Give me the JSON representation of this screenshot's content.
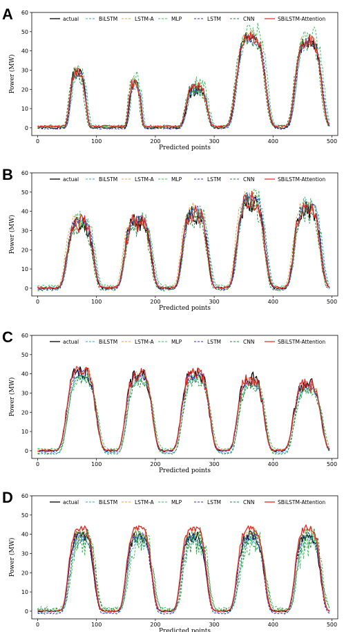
{
  "figure": {
    "panels": [
      "A",
      "B",
      "C",
      "D"
    ]
  },
  "chart_data": [
    {
      "type": "line",
      "panel": "A",
      "xlabel": "Predicted points",
      "ylabel": "Power (MW)",
      "xlim": [
        -10,
        510
      ],
      "ylim": [
        -4,
        60
      ],
      "xticks": [
        0,
        100,
        200,
        300,
        400,
        500
      ],
      "yticks": [
        0,
        10,
        20,
        30,
        40,
        50,
        60
      ],
      "legend_position": "top",
      "peaks": [
        {
          "c": 68,
          "w": 12,
          "h": 28
        },
        {
          "c": 165,
          "w": 9,
          "h": 23
        },
        {
          "c": 270,
          "w": 16,
          "h": 20
        },
        {
          "c": 362,
          "w": 22,
          "h": 47
        },
        {
          "c": 460,
          "w": 20,
          "h": 45
        }
      ],
      "series": [
        {
          "name": "actual",
          "color": "#000000",
          "dash": "solid",
          "width": 1.3,
          "scale": 1.0,
          "shift": 0,
          "noise": 1.2,
          "base": 0,
          "seed": 1
        },
        {
          "name": "BiLSTM",
          "color": "#3aa0d8",
          "dash": "dashed",
          "width": 1.0,
          "scale": 0.95,
          "shift": 2,
          "noise": 0.8,
          "base": 0.4,
          "seed": 2
        },
        {
          "name": "LSTM-A",
          "color": "#f29a4a",
          "dash": "dashed",
          "width": 1.0,
          "scale": 1.02,
          "shift": -1,
          "noise": 1.0,
          "base": 0.2,
          "seed": 3
        },
        {
          "name": "MLP",
          "color": "#3bbf5a",
          "dash": "dashed",
          "width": 1.0,
          "scale": 1.05,
          "shift": 3,
          "noise": 1.6,
          "base": 1.0,
          "seed": 4
        },
        {
          "name": "LSTM",
          "color": "#2c2cc8",
          "dash": "dashed",
          "width": 1.0,
          "scale": 1.0,
          "shift": 1,
          "noise": 0.9,
          "base": -0.4,
          "seed": 5
        },
        {
          "name": "CNN",
          "color": "#1b8a3a",
          "dash": "dashed",
          "width": 1.0,
          "scale": 0.97,
          "shift": -2,
          "noise": 1.3,
          "base": 0.6,
          "seed": 6
        },
        {
          "name": "SBiLSTM-Attention",
          "color": "#e8231f",
          "dash": "solid",
          "width": 1.2,
          "scale": 0.98,
          "shift": 0,
          "noise": 1.1,
          "base": 0.9,
          "seed": 7
        }
      ]
    },
    {
      "type": "line",
      "panel": "B",
      "xlabel": "Predicted points",
      "ylabel": "Power (MW)",
      "xlim": [
        -10,
        510
      ],
      "ylim": [
        -4,
        60
      ],
      "xticks": [
        0,
        100,
        200,
        300,
        400,
        500
      ],
      "yticks": [
        0,
        10,
        20,
        30,
        40,
        50,
        60
      ],
      "legend_position": "top",
      "peaks": [
        {
          "c": 72,
          "w": 20,
          "h": 33
        },
        {
          "c": 170,
          "w": 20,
          "h": 34
        },
        {
          "c": 267,
          "w": 19,
          "h": 38
        },
        {
          "c": 362,
          "w": 21,
          "h": 45
        },
        {
          "c": 458,
          "w": 20,
          "h": 41
        }
      ],
      "series": [
        {
          "name": "actual",
          "color": "#000000",
          "dash": "solid",
          "width": 1.3,
          "scale": 1.0,
          "shift": 0,
          "noise": 1.6,
          "base": 0,
          "seed": 11
        },
        {
          "name": "BiLSTM",
          "color": "#3aa0d8",
          "dash": "dashed",
          "width": 1.0,
          "scale": 1.04,
          "shift": 2,
          "noise": 1.0,
          "base": 0.5,
          "seed": 12
        },
        {
          "name": "LSTM-A",
          "color": "#f29a4a",
          "dash": "dashed",
          "width": 1.0,
          "scale": 1.07,
          "shift": -2,
          "noise": 1.1,
          "base": 0.3,
          "seed": 13
        },
        {
          "name": "MLP",
          "color": "#3bbf5a",
          "dash": "dashed",
          "width": 1.0,
          "scale": 1.03,
          "shift": 3,
          "noise": 1.5,
          "base": 1.2,
          "seed": 14
        },
        {
          "name": "LSTM",
          "color": "#2c2cc8",
          "dash": "dashed",
          "width": 1.0,
          "scale": 1.06,
          "shift": 1,
          "noise": 1.0,
          "base": -0.5,
          "seed": 15
        },
        {
          "name": "CNN",
          "color": "#1b8a3a",
          "dash": "dashed",
          "width": 1.0,
          "scale": 0.98,
          "shift": -1,
          "noise": 1.8,
          "base": -0.8,
          "seed": 16
        },
        {
          "name": "SBiLSTM-Attention",
          "color": "#e8231f",
          "dash": "solid",
          "width": 1.2,
          "scale": 1.01,
          "shift": 0,
          "noise": 1.7,
          "base": 0.3,
          "seed": 17
        }
      ]
    },
    {
      "type": "line",
      "panel": "C",
      "xlabel": "Predicted points",
      "ylabel": "Power (MW)",
      "xlim": [
        -10,
        510
      ],
      "ylim": [
        -4,
        60
      ],
      "xticks": [
        0,
        100,
        200,
        300,
        400,
        500
      ],
      "yticks": [
        0,
        10,
        20,
        30,
        40,
        50,
        60
      ],
      "legend_position": "top",
      "peaks": [
        {
          "c": 74,
          "w": 22,
          "h": 41
        },
        {
          "c": 172,
          "w": 20,
          "h": 39
        },
        {
          "c": 268,
          "w": 21,
          "h": 40
        },
        {
          "c": 362,
          "w": 20,
          "h": 37
        },
        {
          "c": 458,
          "w": 21,
          "h": 34
        }
      ],
      "series": [
        {
          "name": "actual",
          "color": "#000000",
          "dash": "solid",
          "width": 1.3,
          "scale": 1.0,
          "shift": 0,
          "noise": 1.3,
          "base": 0,
          "seed": 21
        },
        {
          "name": "BiLSTM",
          "color": "#3aa0d8",
          "dash": "dashed",
          "width": 1.0,
          "scale": 0.97,
          "shift": 2,
          "noise": 0.9,
          "base": -1.0,
          "seed": 22
        },
        {
          "name": "LSTM-A",
          "color": "#f29a4a",
          "dash": "dashed",
          "width": 1.0,
          "scale": 1.0,
          "shift": 1,
          "noise": 0.8,
          "base": 0.4,
          "seed": 23
        },
        {
          "name": "MLP",
          "color": "#3bbf5a",
          "dash": "dashed",
          "width": 1.0,
          "scale": 0.9,
          "shift": 3,
          "noise": 0.9,
          "base": 1.0,
          "seed": 24
        },
        {
          "name": "LSTM",
          "color": "#2c2cc8",
          "dash": "dashed",
          "width": 1.0,
          "scale": 0.99,
          "shift": 0,
          "noise": 0.8,
          "base": -0.3,
          "seed": 25
        },
        {
          "name": "CNN",
          "color": "#1b8a3a",
          "dash": "dashed",
          "width": 1.0,
          "scale": 0.95,
          "shift": 2,
          "noise": 1.0,
          "base": -1.5,
          "seed": 26
        },
        {
          "name": "SBiLSTM-Attention",
          "color": "#e8231f",
          "dash": "solid",
          "width": 1.2,
          "scale": 1.0,
          "shift": 0,
          "noise": 1.2,
          "base": 0.2,
          "seed": 27
        }
      ]
    },
    {
      "type": "line",
      "panel": "D",
      "xlabel": "Predicted points",
      "ylabel": "Power (MW)",
      "xlim": [
        -10,
        510
      ],
      "ylim": [
        -4,
        60
      ],
      "xticks": [
        0,
        100,
        200,
        300,
        400,
        500
      ],
      "yticks": [
        0,
        10,
        20,
        30,
        40,
        50,
        60
      ],
      "legend_position": "top",
      "peaks": [
        {
          "c": 74,
          "w": 19,
          "h": 41
        },
        {
          "c": 172,
          "w": 19,
          "h": 41
        },
        {
          "c": 265,
          "w": 19,
          "h": 41
        },
        {
          "c": 362,
          "w": 20,
          "h": 41
        },
        {
          "c": 459,
          "w": 19,
          "h": 41
        }
      ],
      "series": [
        {
          "name": "actual",
          "color": "#000000",
          "dash": "solid",
          "width": 1.3,
          "scale": 0.95,
          "shift": 0,
          "noise": 1.0,
          "base": 0,
          "seed": 31
        },
        {
          "name": "BiLSTM",
          "color": "#3aa0d8",
          "dash": "dashed",
          "width": 1.0,
          "scale": 0.92,
          "shift": 2,
          "noise": 1.0,
          "base": -0.6,
          "seed": 32
        },
        {
          "name": "LSTM-A",
          "color": "#f29a4a",
          "dash": "dashed",
          "width": 1.0,
          "scale": 1.0,
          "shift": 1,
          "noise": 0.9,
          "base": 0.3,
          "seed": 33
        },
        {
          "name": "MLP",
          "color": "#3bbf5a",
          "dash": "dashed",
          "width": 1.0,
          "scale": 0.85,
          "shift": 4,
          "noise": 2.6,
          "base": 1.5,
          "seed": 34
        },
        {
          "name": "LSTM",
          "color": "#2c2cc8",
          "dash": "dashed",
          "width": 1.0,
          "scale": 0.97,
          "shift": 0,
          "noise": 0.8,
          "base": -1.2,
          "seed": 35
        },
        {
          "name": "CNN",
          "color": "#1b8a3a",
          "dash": "dashed",
          "width": 1.0,
          "scale": 0.9,
          "shift": 3,
          "noise": 2.2,
          "base": 0.8,
          "seed": 36
        },
        {
          "name": "SBiLSTM-Attention",
          "color": "#e8231f",
          "dash": "solid",
          "width": 1.3,
          "scale": 1.05,
          "shift": 0,
          "noise": 0.6,
          "base": 0.0,
          "seed": 37
        }
      ]
    }
  ]
}
